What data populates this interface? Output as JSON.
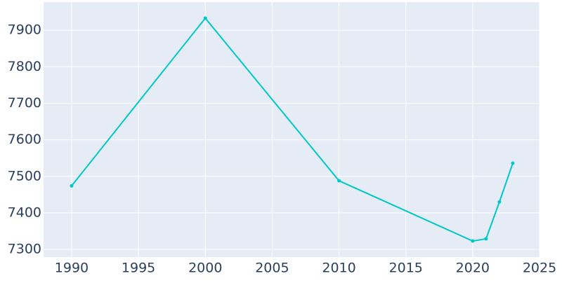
{
  "chart_data": {
    "type": "line",
    "x": [
      1990,
      2000,
      2010,
      2020,
      2021,
      2022,
      2023
    ],
    "series": [
      {
        "color": "#00c8c8",
        "values": [
          7474,
          7933,
          7488,
          7323,
          7329,
          7430,
          7536
        ]
      }
    ],
    "xlim": [
      1987.9,
      2025
    ],
    "xticks": [
      1990,
      1995,
      2000,
      2005,
      2010,
      2015,
      2020,
      2025
    ],
    "ylim": [
      7279,
      7977
    ],
    "yticks": [
      7300,
      7400,
      7500,
      7600,
      7700,
      7800,
      7900
    ],
    "grid": true
  }
}
